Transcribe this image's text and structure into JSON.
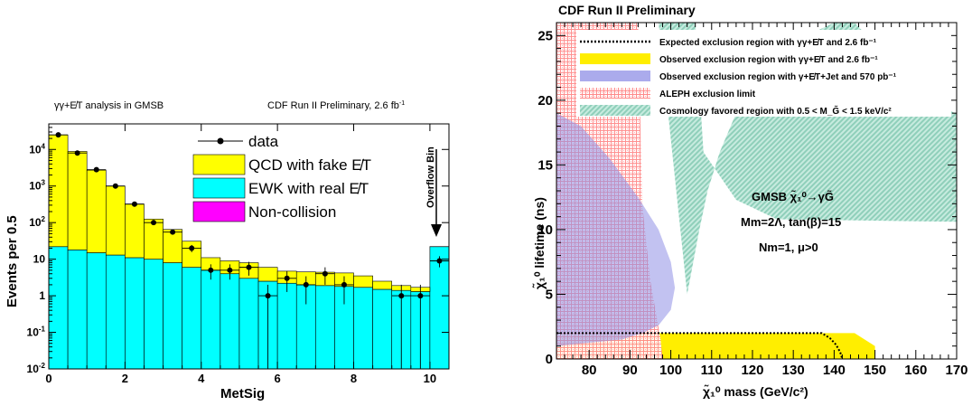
{
  "chart_data": [
    {
      "type": "bar",
      "title": "CDF Run II Preliminary, 2.6 fb",
      "title_superscript": "-1",
      "subtitle": "γγ+E̸T analysis in GMSB",
      "xlabel": "MetSig",
      "ylabel": "Events per 0.5",
      "xlim": [
        0,
        10.5
      ],
      "ylim": [
        0.01,
        50000
      ],
      "y_scale": "log",
      "grid": false,
      "stacked": true,
      "legend_position": "top-right",
      "x_ticks": [
        0,
        2,
        4,
        6,
        8,
        10
      ],
      "y_ticks": [
        {
          "value": 0.01,
          "base": "10",
          "exp": "-2"
        },
        {
          "value": 0.1,
          "base": "10",
          "exp": "-1"
        },
        {
          "value": 1,
          "base": "1",
          "exp": ""
        },
        {
          "value": 10,
          "base": "10",
          "exp": ""
        },
        {
          "value": 100,
          "base": "10",
          "exp": "2"
        },
        {
          "value": 1000,
          "base": "10",
          "exp": "3"
        },
        {
          "value": 10000,
          "base": "10",
          "exp": "4"
        }
      ],
      "bin_edges": [
        0,
        0.5,
        1,
        1.5,
        2,
        2.5,
        3,
        3.5,
        4,
        4.5,
        5,
        5.5,
        6,
        6.5,
        7,
        7.5,
        8,
        8.5,
        9,
        9.5,
        10,
        10.5
      ],
      "series": [
        {
          "name": "EWK with real E̸T",
          "color": "#00ffff",
          "values": [
            22,
            18,
            15,
            13,
            11,
            10,
            8,
            6,
            5,
            4,
            3,
            2.5,
            2.2,
            2,
            1.9,
            1.8,
            1.7,
            1.5,
            1.4,
            1.3,
            22
          ]
        },
        {
          "name": "QCD with fake E̸T",
          "color": "#ffff00",
          "values": [
            25000,
            8800,
            2700,
            980,
            310,
            115,
            57,
            25,
            6,
            5,
            5,
            3.5,
            2.5,
            2.5,
            2.5,
            2.4,
            1.8,
            1.0,
            0.5,
            0.4,
            0
          ]
        },
        {
          "name": "Non-collision",
          "color": "#ff00ff",
          "values": [
            0,
            0,
            0,
            0,
            0,
            0,
            0,
            0,
            0,
            0,
            0,
            0,
            0,
            0,
            0,
            0,
            0,
            0,
            0,
            0,
            0.09
          ]
        }
      ],
      "data_points": {
        "name": "data",
        "x": [
          0.25,
          0.75,
          1.25,
          1.75,
          2.25,
          2.75,
          3.25,
          3.75,
          4.25,
          4.75,
          5.25,
          5.75,
          6.25,
          6.75,
          7.25,
          7.75,
          9.25,
          9.75,
          10.25
        ],
        "y": [
          25000,
          8000,
          2800,
          1000,
          320,
          100,
          55,
          20,
          5,
          5,
          6,
          1,
          3,
          2,
          4,
          2,
          1,
          1,
          9
        ]
      },
      "legend": [
        {
          "label": "data",
          "kind": "marker"
        },
        {
          "label": "QCD with fake E̸T",
          "kind": "box",
          "color": "#ffff00"
        },
        {
          "label": "EWK with real E̸T",
          "kind": "box",
          "color": "#00ffff"
        },
        {
          "label": "Non-collision",
          "kind": "box",
          "color": "#ff00ff"
        }
      ],
      "annotation": "Overflow Bin"
    },
    {
      "type": "area",
      "title": "CDF Run II Preliminary",
      "xlabel": "χ̃₁⁰ mass (GeV/c²)",
      "ylabel": "χ̃₁⁰ lifetime (ns)",
      "xlim": [
        72,
        170
      ],
      "ylim": [
        0,
        26
      ],
      "grid": false,
      "x_ticks": [
        80,
        90,
        100,
        110,
        120,
        130,
        140,
        150,
        160,
        170
      ],
      "y_ticks": [
        0,
        5,
        10,
        15,
        20,
        25
      ],
      "legend_position": "top-right",
      "series": [
        {
          "name": "Expected exclusion region with γγ+E̸T and 2.6 fb⁻¹",
          "style": "dotted-line",
          "color": "#000000",
          "x": [
            72,
            137,
            139,
            140.5,
            141.5,
            142
          ],
          "y": [
            2,
            2,
            1.6,
            1.1,
            0.5,
            0
          ]
        },
        {
          "name": "Observed exclusion region with γγ+E̸T and 2.6 fb⁻¹",
          "style": "fill",
          "color": "#ffee00",
          "x": [
            72,
            145,
            150,
            150,
            72
          ],
          "y": [
            2,
            2,
            1,
            0,
            0
          ]
        },
        {
          "name": "Observed exclusion region with γ+E̸T+Jet and 570 pb⁻¹",
          "style": "fill",
          "color": "#8f8fe6",
          "x": [
            72,
            78,
            85,
            92,
            97,
            100,
            101,
            100,
            97,
            93,
            88,
            72
          ],
          "y": [
            19,
            18,
            15.5,
            12.5,
            10,
            7.5,
            5.5,
            3.8,
            2.6,
            2,
            1.5,
            1
          ]
        },
        {
          "name": "ALEPH exclusion limit",
          "style": "hatch",
          "color": "#ff8a8a",
          "x": [
            72,
            92,
            93,
            95,
            97.5,
            98,
            72
          ],
          "y": [
            26,
            26,
            12,
            6,
            1.5,
            0,
            0
          ]
        },
        {
          "name": "Cosmology favored region with 0.5 < M_G̃ < 1.5 keV/c²",
          "style": "hatch",
          "color": "#9fd6c5",
          "x": [
            97,
            106,
            108,
            116,
            126,
            170,
            170,
            160,
            151,
            145,
            140,
            130,
            122,
            116,
            112,
            109,
            107,
            104
          ],
          "y": [
            26,
            26,
            16,
            12.3,
            10.8,
            10.6,
            19,
            20,
            24,
            26,
            26,
            24.5,
            22,
            19,
            16,
            13,
            10,
            5
          ]
        }
      ],
      "legend": [
        {
          "label": "Expected exclusion region with γγ+E̸T and 2.6 fb⁻¹"
        },
        {
          "label": "Observed exclusion region with γγ+E̸T and 2.6 fb⁻¹"
        },
        {
          "label": "Observed exclusion region with γ+E̸T+Jet and 570 pb⁻¹"
        },
        {
          "label": "ALEPH exclusion limit"
        },
        {
          "label": "Cosmology favored region with 0.5 < M_G̃ < 1.5 keV/c²"
        }
      ],
      "annotations": [
        "GMSB χ̃₁⁰→γG̃",
        "Mm=2Λ, tan(β)=15",
        "Nm=1, μ>0"
      ]
    }
  ]
}
